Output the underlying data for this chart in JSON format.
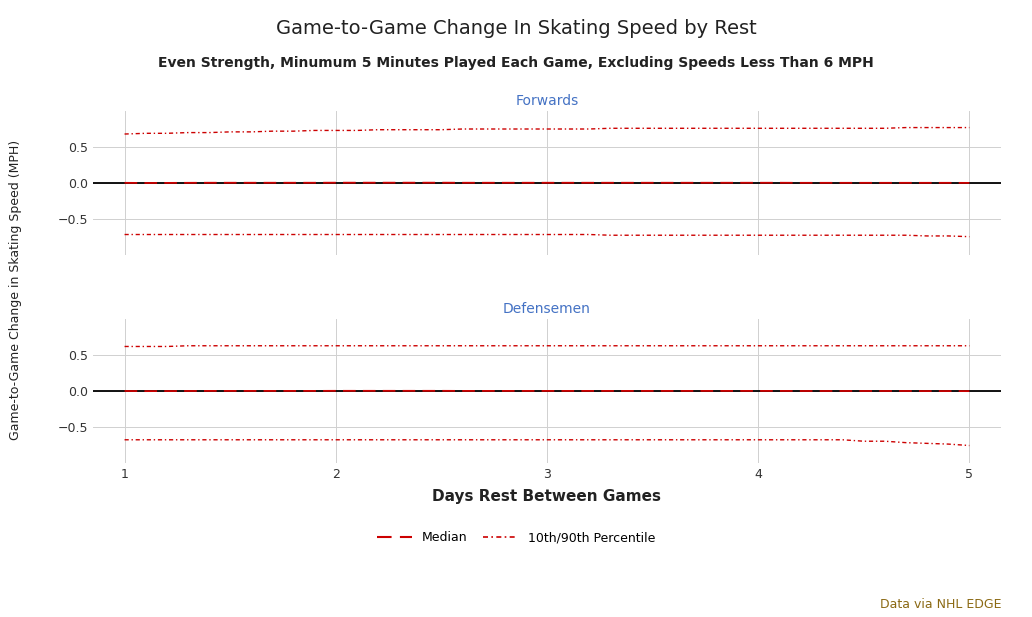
{
  "title": "Game-to-Game Change In Skating Speed by Rest",
  "subtitle": "Even Strength, Minumum 5 Minutes Played Each Game, Excluding Speeds Less Than 6 MPH",
  "xlabel": "Days Rest Between Games",
  "ylabel": "Game-to-Game Change in Skating Speed (MPH)",
  "section_labels": [
    "Forwards",
    "Defensemen"
  ],
  "annotation": "Data via NHL EDGE",
  "annotation_color": "#8B6914",
  "x": [
    1.0,
    1.1,
    1.2,
    1.3,
    1.4,
    1.5,
    1.6,
    1.7,
    1.8,
    1.9,
    2.0,
    2.1,
    2.2,
    2.3,
    2.4,
    2.5,
    2.6,
    2.7,
    2.8,
    2.9,
    3.0,
    3.1,
    3.2,
    3.3,
    3.4,
    3.5,
    3.6,
    3.7,
    3.8,
    3.9,
    4.0,
    4.1,
    4.2,
    4.3,
    4.4,
    4.5,
    4.6,
    4.7,
    4.8,
    4.9,
    5.0
  ],
  "forwards_median": [
    0.0,
    -0.002,
    -0.001,
    0.0,
    0.001,
    0.001,
    0.001,
    0.001,
    0.001,
    0.001,
    0.002,
    0.002,
    0.002,
    0.002,
    0.002,
    0.002,
    0.001,
    0.001,
    0.001,
    0.001,
    0.001,
    0.001,
    0.001,
    0.001,
    0.001,
    0.001,
    0.001,
    0.001,
    0.001,
    0.001,
    0.001,
    0.001,
    0.0,
    0.0,
    0.0,
    0.0,
    0.0,
    0.0,
    0.0,
    0.0,
    -0.001
  ],
  "forwards_p90": [
    0.68,
    0.69,
    0.69,
    0.7,
    0.7,
    0.71,
    0.71,
    0.72,
    0.72,
    0.73,
    0.73,
    0.73,
    0.74,
    0.74,
    0.74,
    0.74,
    0.75,
    0.75,
    0.75,
    0.75,
    0.75,
    0.75,
    0.75,
    0.76,
    0.76,
    0.76,
    0.76,
    0.76,
    0.76,
    0.76,
    0.76,
    0.76,
    0.76,
    0.76,
    0.76,
    0.76,
    0.76,
    0.77,
    0.77,
    0.77,
    0.77
  ],
  "forwards_p10": [
    -0.72,
    -0.72,
    -0.72,
    -0.72,
    -0.72,
    -0.72,
    -0.72,
    -0.72,
    -0.72,
    -0.72,
    -0.72,
    -0.72,
    -0.72,
    -0.72,
    -0.72,
    -0.72,
    -0.72,
    -0.72,
    -0.72,
    -0.72,
    -0.72,
    -0.72,
    -0.72,
    -0.73,
    -0.73,
    -0.73,
    -0.73,
    -0.73,
    -0.73,
    -0.73,
    -0.73,
    -0.73,
    -0.73,
    -0.73,
    -0.73,
    -0.73,
    -0.73,
    -0.73,
    -0.74,
    -0.74,
    -0.75
  ],
  "defensemen_median": [
    0.0,
    -0.002,
    -0.001,
    0.0,
    0.001,
    0.001,
    0.001,
    0.001,
    0.001,
    0.001,
    0.002,
    0.002,
    0.002,
    0.002,
    0.002,
    0.002,
    0.001,
    0.001,
    0.001,
    0.001,
    0.001,
    0.001,
    0.001,
    0.001,
    0.001,
    0.001,
    0.001,
    0.001,
    0.001,
    0.001,
    0.001,
    0.001,
    0.0,
    0.0,
    0.0,
    0.0,
    0.0,
    0.0,
    -0.001,
    -0.001,
    -0.002
  ],
  "defensemen_p90": [
    0.62,
    0.62,
    0.62,
    0.63,
    0.63,
    0.63,
    0.63,
    0.63,
    0.63,
    0.63,
    0.63,
    0.63,
    0.63,
    0.63,
    0.63,
    0.63,
    0.63,
    0.63,
    0.63,
    0.63,
    0.63,
    0.63,
    0.63,
    0.63,
    0.63,
    0.63,
    0.63,
    0.63,
    0.63,
    0.63,
    0.63,
    0.63,
    0.63,
    0.63,
    0.63,
    0.63,
    0.63,
    0.63,
    0.63,
    0.63,
    0.63
  ],
  "defensemen_p10": [
    -0.68,
    -0.68,
    -0.68,
    -0.68,
    -0.68,
    -0.68,
    -0.68,
    -0.68,
    -0.68,
    -0.68,
    -0.68,
    -0.68,
    -0.68,
    -0.68,
    -0.68,
    -0.68,
    -0.68,
    -0.68,
    -0.68,
    -0.68,
    -0.68,
    -0.68,
    -0.68,
    -0.68,
    -0.68,
    -0.68,
    -0.68,
    -0.68,
    -0.68,
    -0.68,
    -0.68,
    -0.68,
    -0.68,
    -0.68,
    -0.68,
    -0.7,
    -0.7,
    -0.72,
    -0.73,
    -0.74,
    -0.76
  ],
  "median_color": "#CC0000",
  "percentile_color": "#CC0000",
  "zero_line_color": "#000000",
  "background_color": "#FFFFFF",
  "grid_color": "#D0D0D0",
  "title_color": "#222222",
  "subtitle_color": "#222222",
  "section_label_color": "#4472C4",
  "xlim": [
    0.85,
    5.15
  ],
  "xticks": [
    1,
    2,
    3,
    4,
    5
  ],
  "ylim": [
    -1.0,
    1.0
  ],
  "yticks": [
    -0.5,
    0.0,
    0.5
  ],
  "title_fontsize": 14,
  "subtitle_fontsize": 10,
  "ylabel_fontsize": 9,
  "xlabel_fontsize": 11,
  "tick_fontsize": 9,
  "section_label_fontsize": 10,
  "annotation_fontsize": 9,
  "legend_fontsize": 9
}
